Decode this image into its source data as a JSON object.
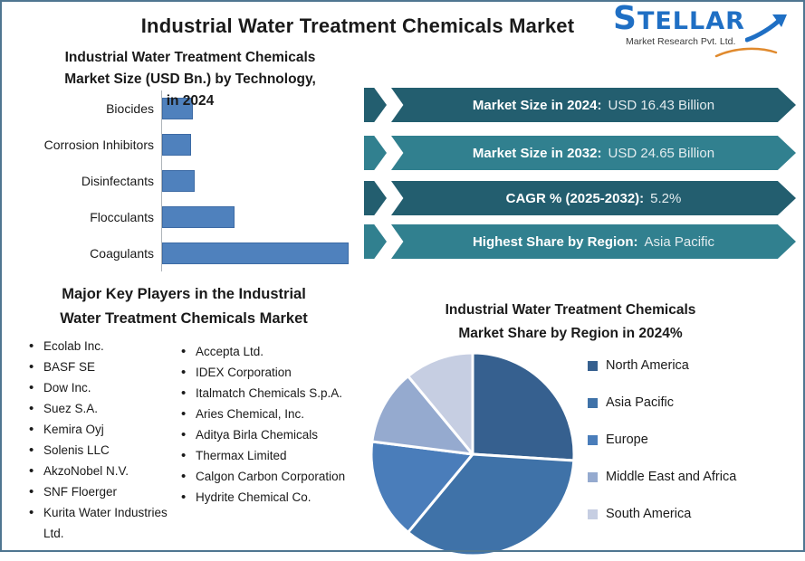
{
  "page": {
    "title": "Industrial Water Treatment Chemicals Market"
  },
  "logo": {
    "name": "STELLAR",
    "tagline": "Market Research Pvt. Ltd.",
    "accent_blue": "#1f6fc4",
    "accent_orange": "#e08a2e"
  },
  "bar_section": {
    "title_lines": [
      "Industrial Water Treatment Chemicals",
      "Market Size (USD Bn.) by Technology,",
      "in 2024"
    ]
  },
  "banners": [
    {
      "label": "Market Size in 2024:",
      "value": "USD 16.43 Billion",
      "color": "#235e6f"
    },
    {
      "label": "Market Size in 2032:",
      "value": "USD 24.65 Billion",
      "color": "#31808f"
    },
    {
      "label": "CAGR % (2025-2032):",
      "value": "5.2%",
      "color": "#235e6f"
    },
    {
      "label": "Highest Share by Region:",
      "value": "Asia Pacific",
      "color": "#31808f"
    }
  ],
  "key_players": {
    "heading_lines": [
      "Major Key Players in the Industrial",
      "Water Treatment Chemicals Market"
    ],
    "columns": [
      [
        "Ecolab Inc.",
        "BASF SE",
        "Dow Inc.",
        "Suez S.A.",
        "Kemira Oyj",
        "Solenis LLC",
        "AkzoNobel N.V.",
        "SNF Floerger",
        "Kurita Water Industries Ltd."
      ],
      [
        "Accepta Ltd.",
        "IDEX Corporation",
        "Italmatch Chemicals S.p.A.",
        "Aries Chemical, Inc.",
        "Aditya Birla Chemicals",
        "Thermax Limited",
        "Calgon Carbon Corporation",
        "Hydrite Chemical Co."
      ]
    ]
  },
  "pie_section": {
    "title_lines": [
      "Industrial Water Treatment Chemicals",
      "Market Share by Region in 2024%"
    ]
  },
  "chart_data": [
    {
      "type": "bar",
      "orientation": "horizontal",
      "title": "Industrial Water Treatment Chemicals Market Size (USD Bn.) by Technology, in 2024",
      "categories": [
        "Biocides",
        "Corrosion Inhibitors",
        "Disinfectants",
        "Flocculants",
        "Coagulants"
      ],
      "values": [
        1.4,
        1.3,
        1.5,
        3.4,
        8.9
      ],
      "value_note": "USD Bn., estimated from bar lengths; axis unlabeled",
      "xlabel": "",
      "ylabel": "",
      "bar_color": "#4f81bd",
      "grid": false
    },
    {
      "type": "pie",
      "title": "Industrial Water Treatment Chemicals Market Share by Region in 2024%",
      "labels": [
        "North America",
        "Asia Pacific",
        "Europe",
        "Middle East and Africa",
        "South America"
      ],
      "values": [
        26,
        35,
        16,
        12,
        11
      ],
      "value_note": "percent share, estimated from slice angles; no data labels shown",
      "colors": [
        "#36608f",
        "#3f72a8",
        "#4a7dba",
        "#95aacf",
        "#c6cee2"
      ],
      "start_angle_deg": 0,
      "direction": "clockwise",
      "legend_position": "right"
    }
  ]
}
